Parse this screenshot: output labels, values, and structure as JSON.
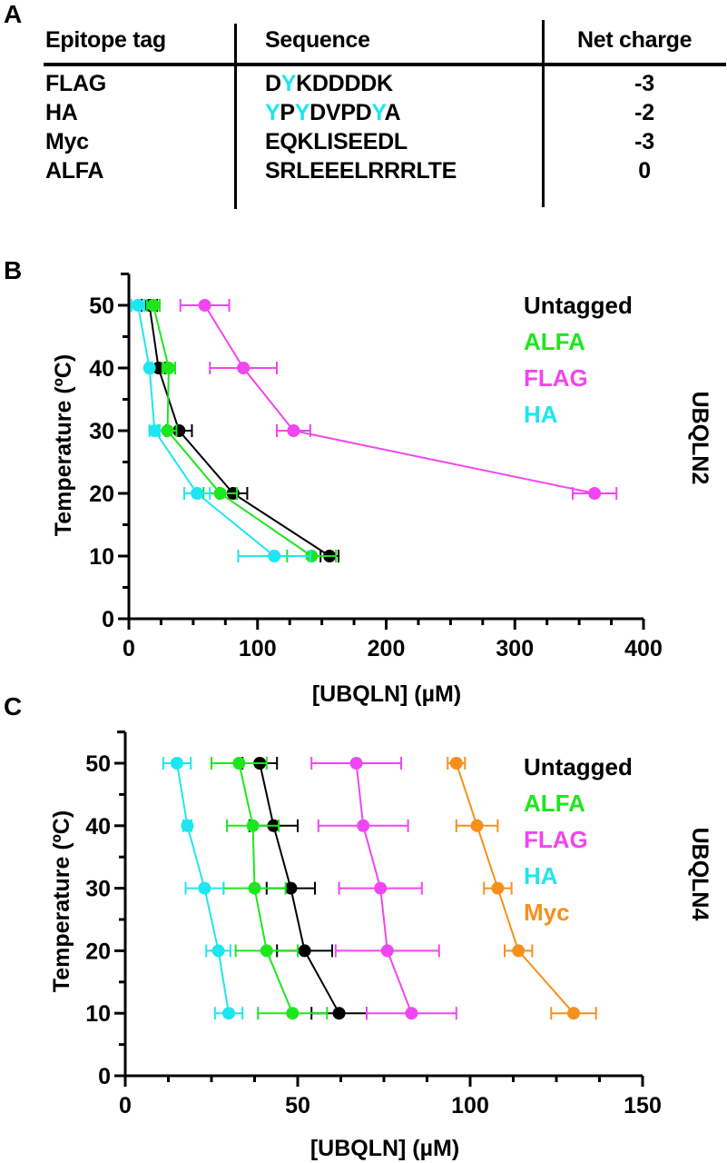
{
  "panels": {
    "a_label": "A",
    "b_label": "B",
    "c_label": "C"
  },
  "table": {
    "headers": [
      "Epitope tag",
      "Sequence",
      "Net charge"
    ],
    "highlight_color": "#1ee6f0",
    "rows": [
      {
        "tag": "FLAG",
        "sequence": "DYKDDDDK",
        "highlight": [
          1
        ],
        "charge": "-3"
      },
      {
        "tag": "HA",
        "sequence": "YPYDVPDYA",
        "highlight": [
          0,
          2,
          7
        ],
        "charge": "-2"
      },
      {
        "tag": "Myc",
        "sequence": "EQKLISEEDL",
        "highlight": [],
        "charge": "-3"
      },
      {
        "tag": "ALFA",
        "sequence": "SRLEEELRRRLTE",
        "highlight": [],
        "charge": "0"
      }
    ]
  },
  "chart_data": [
    {
      "type": "scatter",
      "panel": "B",
      "title": "UBQLN2",
      "xlabel": "[UBQLN] (µM)",
      "ylabel": "Temperature (ºC)",
      "xlim": [
        0,
        400
      ],
      "ylim": [
        0,
        55
      ],
      "xticks": [
        0,
        100,
        200,
        300,
        400
      ],
      "xminor_step": 25,
      "yticks": [
        0,
        10,
        20,
        30,
        40,
        50
      ],
      "yminor_step": 5,
      "grid": false,
      "legend_position": "top-right",
      "series": [
        {
          "name": "Untagged",
          "color": "#000000",
          "points": [
            {
              "y": 10,
              "x": 156,
              "err": 7
            },
            {
              "y": 20,
              "x": 81,
              "err": 11
            },
            {
              "y": 30,
              "x": 39,
              "err": 10
            },
            {
              "y": 40,
              "x": 23,
              "err": 5
            },
            {
              "y": 50,
              "x": 16,
              "err": 6
            }
          ]
        },
        {
          "name": "ALFA",
          "color": "#1ee61e",
          "points": [
            {
              "y": 10,
              "x": 142,
              "err": 19
            },
            {
              "y": 20,
              "x": 71,
              "err": 13
            },
            {
              "y": 30,
              "x": 30,
              "err": 7
            },
            {
              "y": 40,
              "x": 31,
              "err": 5
            },
            {
              "y": 50,
              "x": 19,
              "err": 5
            }
          ]
        },
        {
          "name": "FLAG",
          "color": "#f046f0",
          "points": [
            {
              "y": 20,
              "x": 362,
              "err": 17
            },
            {
              "y": 30,
              "x": 128,
              "err": 13
            },
            {
              "y": 40,
              "x": 89,
              "err": 26
            },
            {
              "y": 50,
              "x": 59,
              "err": 19
            }
          ]
        },
        {
          "name": "HA",
          "color": "#1ee6f0",
          "points": [
            {
              "y": 10,
              "x": 113,
              "err": 28
            },
            {
              "y": 20,
              "x": 53,
              "err": 10
            },
            {
              "y": 30,
              "x": 20,
              "err": 4
            },
            {
              "y": 40,
              "x": 16,
              "err": 2
            },
            {
              "y": 50,
              "x": 7,
              "err": 5
            }
          ]
        }
      ]
    },
    {
      "type": "scatter",
      "panel": "C",
      "title": "UBQLN4",
      "xlabel": "[UBQLN] (µM)",
      "ylabel": "Temperature (ºC)",
      "xlim": [
        0,
        150
      ],
      "ylim": [
        0,
        55
      ],
      "xticks": [
        0,
        50,
        100,
        150
      ],
      "xminor_step": 12.5,
      "yticks": [
        0,
        10,
        20,
        30,
        40,
        50
      ],
      "yminor_step": 5,
      "grid": false,
      "legend_position": "top-right",
      "series": [
        {
          "name": "Untagged",
          "color": "#000000",
          "points": [
            {
              "y": 10,
              "x": 62,
              "err": 8
            },
            {
              "y": 20,
              "x": 52,
              "err": 8
            },
            {
              "y": 30,
              "x": 48,
              "err": 7
            },
            {
              "y": 40,
              "x": 43,
              "err": 7
            },
            {
              "y": 50,
              "x": 39,
              "err": 5
            }
          ]
        },
        {
          "name": "ALFA",
          "color": "#1ee61e",
          "points": [
            {
              "y": 10,
              "x": 48.5,
              "err": 10
            },
            {
              "y": 20,
              "x": 41,
              "err": 9
            },
            {
              "y": 30,
              "x": 37.5,
              "err": 9
            },
            {
              "y": 40,
              "x": 37,
              "err": 7.5
            },
            {
              "y": 50,
              "x": 33,
              "err": 8
            }
          ]
        },
        {
          "name": "FLAG",
          "color": "#f046f0",
          "points": [
            {
              "y": 10,
              "x": 83,
              "err": 13
            },
            {
              "y": 20,
              "x": 76,
              "err": 15
            },
            {
              "y": 30,
              "x": 74,
              "err": 12
            },
            {
              "y": 40,
              "x": 69,
              "err": 13
            },
            {
              "y": 50,
              "x": 67,
              "err": 13
            }
          ]
        },
        {
          "name": "HA",
          "color": "#1ee6f0",
          "points": [
            {
              "y": 10,
              "x": 30,
              "err": 4
            },
            {
              "y": 20,
              "x": 27,
              "err": 3.5
            },
            {
              "y": 30,
              "x": 23,
              "err": 5.5
            },
            {
              "y": 40,
              "x": 18,
              "err": 1.2
            },
            {
              "y": 50,
              "x": 15,
              "err": 4
            }
          ]
        },
        {
          "name": "Myc",
          "color": "#f5901e",
          "points": [
            {
              "y": 10,
              "x": 130,
              "err": 6.5
            },
            {
              "y": 20,
              "x": 114,
              "err": 4
            },
            {
              "y": 30,
              "x": 108,
              "err": 4
            },
            {
              "y": 40,
              "x": 102,
              "err": 6
            },
            {
              "y": 50,
              "x": 96,
              "err": 2.5
            }
          ]
        }
      ]
    }
  ]
}
